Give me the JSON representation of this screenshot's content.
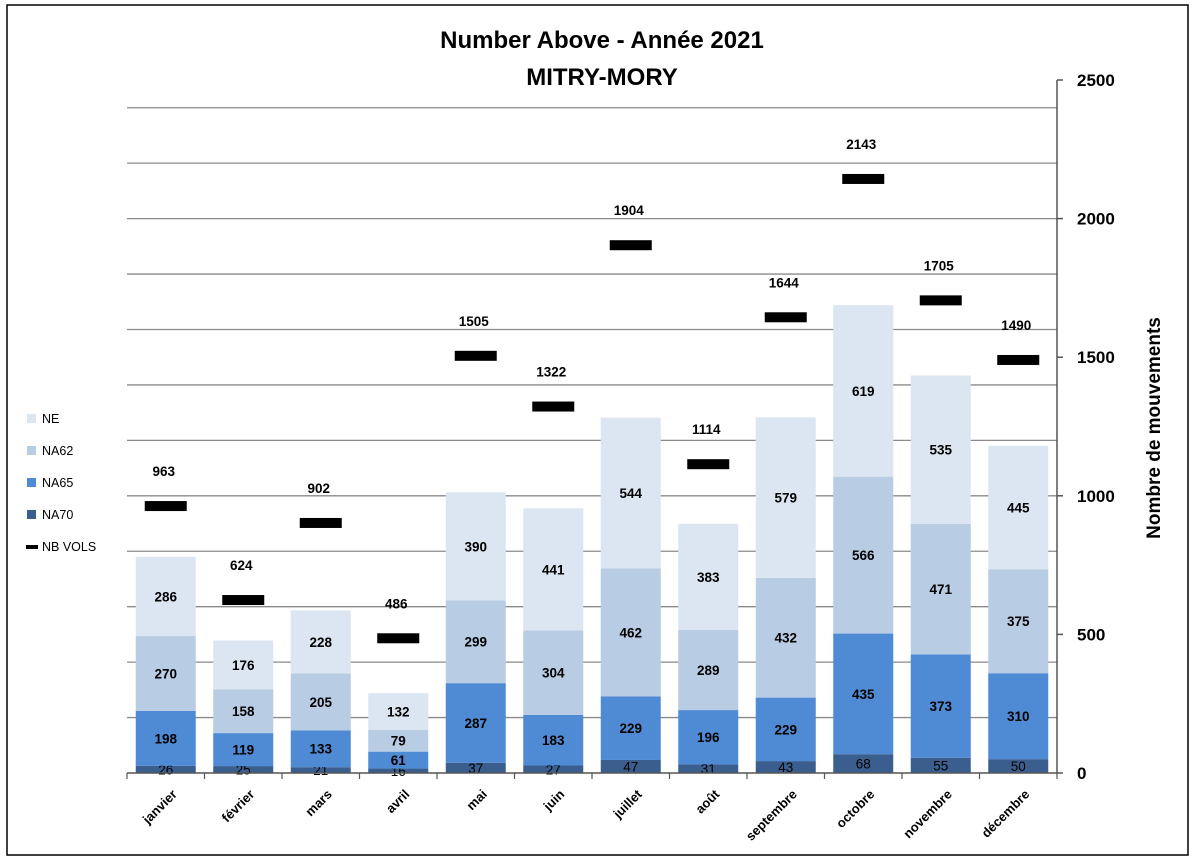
{
  "chart_data": {
    "type": "bar",
    "stacked": true,
    "title": "Number Above - Année 2021",
    "subtitle": "MITRY-MORY",
    "ylabel": "Nombre de mouvements",
    "xlabel": "",
    "ylim": [
      0,
      2500
    ],
    "yticks": [
      0,
      500,
      1000,
      1500,
      2000,
      2500
    ],
    "y_axis_side": "right",
    "grid": true,
    "legend_position": "left",
    "categories": [
      "janvier",
      "février",
      "mars",
      "avril",
      "mai",
      "juin",
      "juillet",
      "août",
      "septembre",
      "octobre",
      "novembre",
      "décembre"
    ],
    "series": [
      {
        "name": "NA70",
        "color": "#3a5f8f",
        "values": [
          26,
          25,
          21,
          16,
          37,
          27,
          47,
          31,
          43,
          68,
          55,
          50
        ]
      },
      {
        "name": "NA65",
        "color": "#4f8ad4",
        "values": [
          198,
          119,
          133,
          61,
          287,
          183,
          229,
          196,
          229,
          435,
          373,
          310
        ]
      },
      {
        "name": "NA62",
        "color": "#b8cce4",
        "values": [
          270,
          158,
          205,
          79,
          299,
          304,
          462,
          289,
          432,
          566,
          471,
          375
        ]
      },
      {
        "name": "NE",
        "color": "#dce6f2",
        "values": [
          286,
          176,
          228,
          132,
          390,
          441,
          544,
          383,
          579,
          619,
          535,
          445
        ]
      }
    ],
    "markers": {
      "name": "NB VOLS",
      "color": "#000000",
      "values": [
        963,
        624,
        902,
        486,
        1505,
        1322,
        1904,
        1114,
        1644,
        2143,
        1705,
        1490
      ]
    },
    "legend": [
      "NE",
      "NA62",
      "NA65",
      "NA70",
      "NB VOLS"
    ]
  }
}
